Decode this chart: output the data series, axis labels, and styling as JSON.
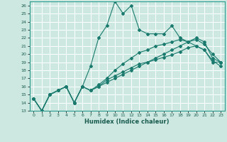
{
  "title": "",
  "xlabel": "Humidex (Indice chaleur)",
  "bg_color": "#cce8e0",
  "grid_color": "#ffffff",
  "line_color": "#1a7a6e",
  "xlim": [
    -0.5,
    23.5
  ],
  "ylim": [
    13,
    26.5
  ],
  "yticks": [
    13,
    14,
    15,
    16,
    17,
    18,
    19,
    20,
    21,
    22,
    23,
    24,
    25,
    26
  ],
  "xticks": [
    0,
    1,
    2,
    3,
    4,
    5,
    6,
    7,
    8,
    9,
    10,
    11,
    12,
    13,
    14,
    15,
    16,
    17,
    18,
    19,
    20,
    21,
    22,
    23
  ],
  "series1": [
    14.5,
    13.0,
    15.0,
    15.5,
    16.0,
    14.0,
    16.0,
    18.5,
    22.0,
    23.5,
    26.5,
    25.0,
    26.0,
    23.0,
    22.5,
    22.5,
    22.5,
    23.5,
    22.0,
    21.5,
    21.0,
    20.5,
    19.0,
    19.0
  ],
  "series2": [
    14.5,
    13.0,
    15.0,
    15.5,
    16.0,
    14.0,
    16.0,
    15.5,
    16.0,
    16.5,
    17.0,
    17.5,
    18.0,
    18.5,
    19.0,
    19.5,
    20.0,
    20.5,
    21.0,
    21.5,
    22.0,
    21.5,
    19.5,
    19.0
  ],
  "series3": [
    14.5,
    13.0,
    15.0,
    15.5,
    16.0,
    14.0,
    16.0,
    15.5,
    16.2,
    17.0,
    18.0,
    18.8,
    19.5,
    20.2,
    20.5,
    21.0,
    21.2,
    21.5,
    21.8,
    21.5,
    21.8,
    21.2,
    20.0,
    19.0
  ],
  "series4": [
    14.5,
    13.0,
    15.0,
    15.5,
    16.0,
    14.0,
    16.0,
    15.5,
    16.0,
    16.8,
    17.3,
    17.8,
    18.3,
    18.8,
    19.0,
    19.3,
    19.6,
    19.9,
    20.3,
    20.8,
    21.0,
    20.5,
    19.2,
    18.5
  ]
}
